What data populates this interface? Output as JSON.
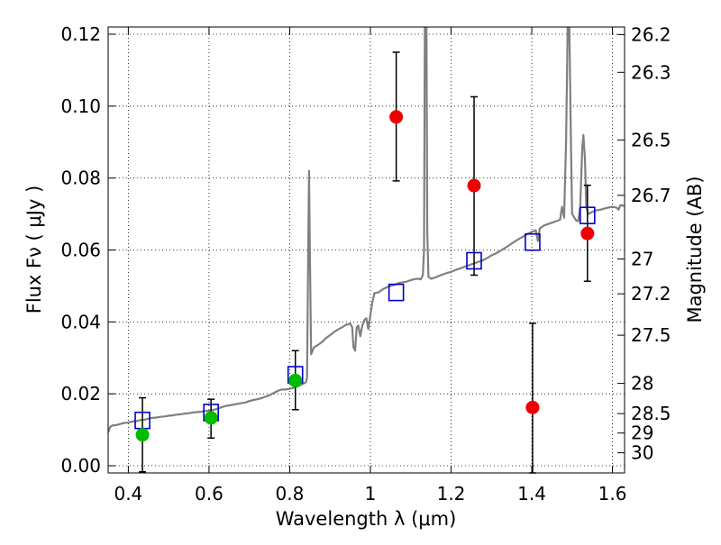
{
  "chart_data": {
    "type": "scatter",
    "xlabel": "Wavelength  λ (μm)",
    "ylabel": "Flux  Fν  ( μJy )",
    "y2label": "Magnitude (AB)",
    "xlim": [
      0.35,
      1.63
    ],
    "ylim": [
      -0.002,
      0.122
    ],
    "grid": true,
    "x_ticks": [
      0.4,
      0.6,
      0.8,
      1.0,
      1.2,
      1.4,
      1.6
    ],
    "x_tick_labels": [
      "0.4",
      "0.6",
      "0.8",
      "1",
      "1.2",
      "1.4",
      "1.6"
    ],
    "y_ticks": [
      0.0,
      0.02,
      0.04,
      0.06,
      0.08,
      0.1,
      0.12
    ],
    "y_tick_labels": [
      "0.00",
      "0.02",
      "0.04",
      "0.06",
      "0.08",
      "0.10",
      "0.12"
    ],
    "y2_ticks": [
      {
        "label": "26.2",
        "flux": 0.1199
      },
      {
        "label": "26.3",
        "flux": 0.1094
      },
      {
        "label": "26.5",
        "flux": 0.0906
      },
      {
        "label": "26.7",
        "flux": 0.0752
      },
      {
        "label": "27",
        "flux": 0.0575
      },
      {
        "label": "27.2",
        "flux": 0.0478
      },
      {
        "label": "27.5",
        "flux": 0.0363
      },
      {
        "label": "28",
        "flux": 0.0229
      },
      {
        "label": "28.5",
        "flux": 0.0145
      },
      {
        "label": "29",
        "flux": 0.0091
      },
      {
        "label": "30",
        "flux": 0.0036
      }
    ],
    "series": [
      {
        "kind": "line",
        "color": "#7f7f7f",
        "points": [
          [
            0.35,
            0.0093
          ],
          [
            0.355,
            0.0108
          ],
          [
            0.36,
            0.0112
          ],
          [
            0.37,
            0.0113
          ],
          [
            0.38,
            0.0116
          ],
          [
            0.39,
            0.0119
          ],
          [
            0.4,
            0.012
          ],
          [
            0.41,
            0.0123
          ],
          [
            0.42,
            0.0124
          ],
          [
            0.43,
            0.0127
          ],
          [
            0.44,
            0.0128
          ],
          [
            0.45,
            0.0131
          ],
          [
            0.46,
            0.0133
          ],
          [
            0.47,
            0.0134
          ],
          [
            0.48,
            0.0136
          ],
          [
            0.49,
            0.0137
          ],
          [
            0.5,
            0.0139
          ],
          [
            0.51,
            0.014
          ],
          [
            0.52,
            0.0142
          ],
          [
            0.53,
            0.0143
          ],
          [
            0.54,
            0.0145
          ],
          [
            0.55,
            0.0146
          ],
          [
            0.56,
            0.0148
          ],
          [
            0.57,
            0.0149
          ],
          [
            0.58,
            0.015
          ],
          [
            0.59,
            0.0152
          ],
          [
            0.6,
            0.0153
          ],
          [
            0.61,
            0.0155
          ],
          [
            0.62,
            0.0158
          ],
          [
            0.63,
            0.0162
          ],
          [
            0.64,
            0.0166
          ],
          [
            0.65,
            0.0168
          ],
          [
            0.66,
            0.017
          ],
          [
            0.67,
            0.0172
          ],
          [
            0.68,
            0.0174
          ],
          [
            0.69,
            0.0176
          ],
          [
            0.7,
            0.018
          ],
          [
            0.71,
            0.0183
          ],
          [
            0.72,
            0.0185
          ],
          [
            0.73,
            0.0188
          ],
          [
            0.74,
            0.0192
          ],
          [
            0.75,
            0.0196
          ],
          [
            0.76,
            0.0202
          ],
          [
            0.77,
            0.0208
          ],
          [
            0.78,
            0.0212
          ],
          [
            0.79,
            0.0212
          ],
          [
            0.8,
            0.0214
          ],
          [
            0.81,
            0.0217
          ],
          [
            0.82,
            0.0221
          ],
          [
            0.83,
            0.0226
          ],
          [
            0.84,
            0.0232
          ],
          [
            0.843,
            0.0245
          ],
          [
            0.846,
            0.06
          ],
          [
            0.848,
            0.082
          ],
          [
            0.85,
            0.06
          ],
          [
            0.853,
            0.031
          ],
          [
            0.86,
            0.0329
          ],
          [
            0.87,
            0.0336
          ],
          [
            0.88,
            0.0344
          ],
          [
            0.89,
            0.0355
          ],
          [
            0.9,
            0.0363
          ],
          [
            0.91,
            0.0372
          ],
          [
            0.92,
            0.0379
          ],
          [
            0.93,
            0.0385
          ],
          [
            0.94,
            0.0392
          ],
          [
            0.95,
            0.0395
          ],
          [
            0.955,
            0.0385
          ],
          [
            0.958,
            0.033
          ],
          [
            0.962,
            0.032
          ],
          [
            0.966,
            0.0385
          ],
          [
            0.97,
            0.039
          ],
          [
            0.975,
            0.036
          ],
          [
            0.98,
            0.039
          ],
          [
            0.985,
            0.0405
          ],
          [
            0.99,
            0.041
          ],
          [
            0.995,
            0.038
          ],
          [
            1.0,
            0.042
          ],
          [
            1.005,
            0.0455
          ],
          [
            1.01,
            0.048
          ],
          [
            1.02,
            0.0482
          ],
          [
            1.03,
            0.049
          ],
          [
            1.04,
            0.0496
          ],
          [
            1.05,
            0.05
          ],
          [
            1.06,
            0.0503
          ],
          [
            1.07,
            0.0508
          ],
          [
            1.08,
            0.051
          ],
          [
            1.09,
            0.0512
          ],
          [
            1.1,
            0.0516
          ],
          [
            1.11,
            0.0519
          ],
          [
            1.12,
            0.052
          ],
          [
            1.125,
            0.0518
          ],
          [
            1.13,
            0.053
          ],
          [
            1.133,
            0.06
          ],
          [
            1.135,
            0.1225
          ],
          [
            1.139,
            0.1225
          ],
          [
            1.141,
            0.065
          ],
          [
            1.144,
            0.0525
          ],
          [
            1.15,
            0.052
          ],
          [
            1.16,
            0.0523
          ],
          [
            1.17,
            0.0528
          ],
          [
            1.18,
            0.0532
          ],
          [
            1.19,
            0.0536
          ],
          [
            1.2,
            0.0539
          ],
          [
            1.21,
            0.0544
          ],
          [
            1.22,
            0.0548
          ],
          [
            1.23,
            0.0552
          ],
          [
            1.24,
            0.0556
          ],
          [
            1.25,
            0.056
          ],
          [
            1.26,
            0.0564
          ],
          [
            1.27,
            0.0568
          ],
          [
            1.28,
            0.0572
          ],
          [
            1.29,
            0.0578
          ],
          [
            1.3,
            0.0585
          ],
          [
            1.31,
            0.059
          ],
          [
            1.32,
            0.0596
          ],
          [
            1.33,
            0.0603
          ],
          [
            1.34,
            0.061
          ],
          [
            1.35,
            0.0618
          ],
          [
            1.36,
            0.0625
          ],
          [
            1.37,
            0.0632
          ],
          [
            1.38,
            0.0638
          ],
          [
            1.39,
            0.0645
          ],
          [
            1.4,
            0.065
          ],
          [
            1.41,
            0.0655
          ],
          [
            1.415,
            0.0625
          ],
          [
            1.42,
            0.066
          ],
          [
            1.43,
            0.0668
          ],
          [
            1.44,
            0.0672
          ],
          [
            1.45,
            0.0676
          ],
          [
            1.46,
            0.068
          ],
          [
            1.47,
            0.0684
          ],
          [
            1.475,
            0.072
          ],
          [
            1.48,
            0.069
          ],
          [
            1.485,
            0.09
          ],
          [
            1.489,
            0.1225
          ],
          [
            1.493,
            0.1225
          ],
          [
            1.497,
            0.09
          ],
          [
            1.5,
            0.07
          ],
          [
            1.51,
            0.0682
          ],
          [
            1.515,
            0.068
          ],
          [
            1.52,
            0.072
          ],
          [
            1.525,
            0.088
          ],
          [
            1.528,
            0.092
          ],
          [
            1.532,
            0.085
          ],
          [
            1.535,
            0.072
          ],
          [
            1.54,
            0.07
          ],
          [
            1.55,
            0.0706
          ],
          [
            1.56,
            0.071
          ],
          [
            1.57,
            0.0712
          ],
          [
            1.58,
            0.0715
          ],
          [
            1.59,
            0.0718
          ],
          [
            1.6,
            0.072
          ],
          [
            1.61,
            0.0718
          ],
          [
            1.615,
            0.0712
          ],
          [
            1.62,
            0.0725
          ],
          [
            1.63,
            0.0722
          ]
        ]
      },
      {
        "kind": "open-squares",
        "color": "#0000cc",
        "points": [
          [
            0.435,
            0.0126
          ],
          [
            0.605,
            0.0148
          ],
          [
            0.814,
            0.0253
          ],
          [
            1.064,
            0.0482
          ],
          [
            1.257,
            0.057
          ],
          [
            1.402,
            0.0622
          ],
          [
            1.538,
            0.0696
          ]
        ]
      },
      {
        "kind": "filled-circles",
        "color": "#00bb00",
        "points": [
          {
            "x": 0.435,
            "y": 0.0086,
            "ylow": -0.0017,
            "yhigh": 0.0189
          },
          {
            "x": 0.605,
            "y": 0.0133,
            "ylow": 0.0077,
            "yhigh": 0.0185
          },
          {
            "x": 0.814,
            "y": 0.0237,
            "ylow": 0.0156,
            "yhigh": 0.032
          }
        ]
      },
      {
        "kind": "filled-circles",
        "color": "#ee0000",
        "points": [
          {
            "x": 1.064,
            "y": 0.097,
            "ylow": 0.0792,
            "yhigh": 0.115
          },
          {
            "x": 1.257,
            "y": 0.0779,
            "ylow": 0.053,
            "yhigh": 0.1026
          },
          {
            "x": 1.402,
            "y": 0.0162,
            "ylow": -0.002,
            "yhigh": 0.0396
          },
          {
            "x": 1.538,
            "y": 0.0646,
            "ylow": 0.0513,
            "yhigh": 0.078
          }
        ]
      }
    ]
  }
}
